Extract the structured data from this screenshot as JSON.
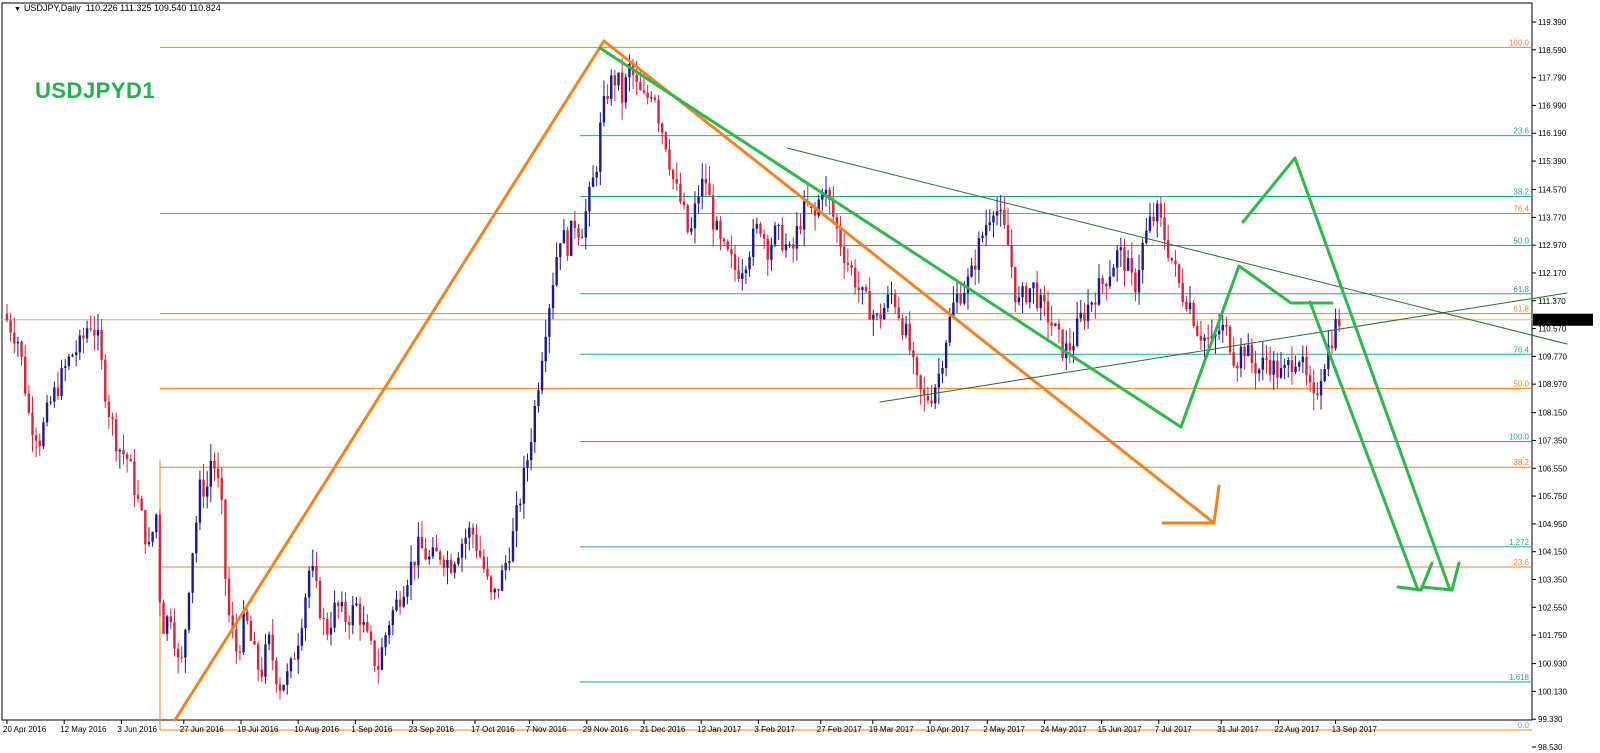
{
  "window": {
    "symbol": "USDJPY,Daily",
    "ohlc": "110.226 111.325 109.540 110.824",
    "big_title": "USDJPYD1"
  },
  "chart_data": {
    "type": "candlestick",
    "title": "USDJPY,Daily",
    "ylim": [
      98.53,
      119.65
    ],
    "y_ticks": [
      "119.390",
      "118.590",
      "117.790",
      "116.990",
      "116.190",
      "115.390",
      "114.570",
      "113.770",
      "112.970",
      "112.170",
      "111.370",
      "110.570",
      "109.770",
      "108.970",
      "108.150",
      "107.350",
      "106.550",
      "105.750",
      "104.950",
      "104.150",
      "103.350",
      "102.550",
      "101.750",
      "100.930",
      "100.130",
      "99.330",
      "98.530"
    ],
    "current_price": "110.824",
    "x_labels": [
      "20 Apr 2016",
      "12 May 2016",
      "3 Jun 2016",
      "27 Jun 2016",
      "19 Jul 2016",
      "10 Aug 2016",
      "1 Sep 2016",
      "23 Sep 2016",
      "17 Oct 2016",
      "7 Nov 2016",
      "29 Nov 2016",
      "21 Dec 2016",
      "12 Jan 2017",
      "3 Feb 2017",
      "27 Feb 2017",
      "19 Mar 2017",
      "10 Apr 2017",
      "2 May 2017",
      "24 May 2017",
      "15 Jun 2017",
      "7 Jul 2017",
      "31 Jul 2017",
      "22 Aug 2017",
      "13 Sep 2017"
    ],
    "colors": {
      "bull": "#1a1a8c",
      "bear": "#d4253b",
      "orange": "#f58220",
      "teal": "#1aaa9e",
      "green": "#2db84a",
      "darkgreen": "#2e6b2e"
    },
    "fib_orange": [
      {
        "label": "100.0",
        "price": 118.66
      },
      {
        "label": "76.4",
        "price": 113.88
      },
      {
        "label": "61.8",
        "price": 111.0
      },
      {
        "label": "50.0",
        "price": 108.85
      },
      {
        "label": "38.2",
        "price": 106.58
      },
      {
        "label": "23.6",
        "price": 103.71
      },
      {
        "label": "0.0",
        "price": 99.02
      }
    ],
    "fib_teal": [
      {
        "label": "23.6",
        "price": 116.12
      },
      {
        "label": "38.2",
        "price": 114.37
      },
      {
        "label": "50.0",
        "price": 112.96
      },
      {
        "label": "61.8",
        "price": 111.57
      },
      {
        "label": "76.4",
        "price": 109.83
      },
      {
        "label": "100.0",
        "price": 107.32
      },
      {
        "label": "1.272",
        "price": 104.29
      },
      {
        "label": "1.618",
        "price": 100.4
      }
    ],
    "anchors": [
      {
        "date": "20 Apr 2016",
        "day": 0
      },
      {
        "date": "12 May 2016",
        "day": 22
      },
      {
        "date": "3 Jun 2016",
        "day": 44
      },
      {
        "date": "27 Jun 2016",
        "day": 68
      },
      {
        "date": "19 Jul 2016",
        "day": 90
      },
      {
        "date": "10 Aug 2016",
        "day": 112
      },
      {
        "date": "1 Sep 2016",
        "day": 134
      },
      {
        "date": "23 Sep 2016",
        "day": 156
      },
      {
        "date": "17 Oct 2016",
        "day": 180
      },
      {
        "date": "7 Nov 2016",
        "day": 201
      },
      {
        "date": "29 Nov 2016",
        "day": 223
      },
      {
        "date": "21 Dec 2016",
        "day": 245
      },
      {
        "date": "12 Jan 2017",
        "day": 267
      },
      {
        "date": "3 Feb 2017",
        "day": 289
      },
      {
        "date": "27 Feb 2017",
        "day": 313
      },
      {
        "date": "19 Mar 2017",
        "day": 333
      },
      {
        "date": "10 Apr 2017",
        "day": 355
      },
      {
        "date": "2 May 2017",
        "day": 377
      },
      {
        "date": "24 May 2017",
        "day": 399
      },
      {
        "date": "15 Jun 2017",
        "day": 421
      },
      {
        "date": "7 Jul 2017",
        "day": 443
      },
      {
        "date": "31 Jul 2017",
        "day": 467
      },
      {
        "date": "22 Aug 2017",
        "day": 489
      },
      {
        "date": "13 Sep 2017",
        "day": 511
      }
    ],
    "price_path": [
      [
        0,
        111.0
      ],
      [
        6,
        110.2
      ],
      [
        10,
        108.0
      ],
      [
        14,
        107.4
      ],
      [
        18,
        108.4
      ],
      [
        22,
        109.1
      ],
      [
        26,
        109.8
      ],
      [
        30,
        110.1
      ],
      [
        33,
        110.8
      ],
      [
        36,
        110.4
      ],
      [
        40,
        108.4
      ],
      [
        44,
        107.2
      ],
      [
        48,
        106.8
      ],
      [
        52,
        105.5
      ],
      [
        56,
        104.2
      ],
      [
        59,
        105.3
      ],
      [
        60,
        103.0
      ],
      [
        62,
        101.8
      ],
      [
        64,
        102.6
      ],
      [
        66,
        101.6
      ],
      [
        68,
        100.5
      ],
      [
        70,
        102.0
      ],
      [
        72,
        103.8
      ],
      [
        74,
        104.9
      ],
      [
        76,
        106.2
      ],
      [
        78,
        105.8
      ],
      [
        80,
        106.9
      ],
      [
        82,
        106.4
      ],
      [
        84,
        105.3
      ],
      [
        86,
        102.6
      ],
      [
        88,
        101.8
      ],
      [
        90,
        101.2
      ],
      [
        93,
        102.3
      ],
      [
        96,
        101.3
      ],
      [
        99,
        100.6
      ],
      [
        102,
        101.6
      ],
      [
        106,
        100.3
      ],
      [
        110,
        100.6
      ],
      [
        114,
        101.9
      ],
      [
        118,
        103.8
      ],
      [
        121,
        102.8
      ],
      [
        124,
        101.8
      ],
      [
        128,
        102.6
      ],
      [
        132,
        102.2
      ],
      [
        136,
        102.6
      ],
      [
        140,
        101.6
      ],
      [
        144,
        100.8
      ],
      [
        148,
        102.1
      ],
      [
        152,
        102.8
      ],
      [
        156,
        103.6
      ],
      [
        160,
        104.3
      ],
      [
        164,
        103.9
      ],
      [
        168,
        104.1
      ],
      [
        172,
        103.8
      ],
      [
        176,
        104.4
      ],
      [
        180,
        104.8
      ],
      [
        184,
        103.9
      ],
      [
        188,
        102.7
      ],
      [
        192,
        103.5
      ],
      [
        196,
        104.6
      ],
      [
        199,
        105.8
      ],
      [
        202,
        107.0
      ],
      [
        205,
        108.6
      ],
      [
        208,
        110.4
      ],
      [
        211,
        111.8
      ],
      [
        214,
        113.3
      ],
      [
        217,
        113.0
      ],
      [
        220,
        113.7
      ],
      [
        222,
        113.3
      ],
      [
        225,
        114.2
      ],
      [
        228,
        115.2
      ],
      [
        230,
        116.6
      ],
      [
        233,
        117.6
      ],
      [
        236,
        117.8
      ],
      [
        238,
        117.2
      ],
      [
        241,
        118.1
      ],
      [
        244,
        117.4
      ],
      [
        247,
        117.1
      ],
      [
        250,
        117.6
      ],
      [
        252,
        116.7
      ],
      [
        255,
        115.9
      ],
      [
        258,
        114.7
      ],
      [
        261,
        114.1
      ],
      [
        264,
        113.1
      ],
      [
        267,
        114.4
      ],
      [
        270,
        114.9
      ],
      [
        273,
        113.7
      ],
      [
        276,
        112.9
      ],
      [
        279,
        112.6
      ],
      [
        282,
        112.2
      ],
      [
        285,
        112.5
      ],
      [
        288,
        113.1
      ],
      [
        291,
        113.6
      ],
      [
        294,
        112.9
      ],
      [
        297,
        113.3
      ],
      [
        300,
        113.1
      ],
      [
        303,
        112.6
      ],
      [
        306,
        113.6
      ],
      [
        309,
        114.1
      ],
      [
        312,
        113.7
      ],
      [
        315,
        114.7
      ],
      [
        318,
        114.1
      ],
      [
        321,
        113.3
      ],
      [
        324,
        112.6
      ],
      [
        327,
        112.1
      ],
      [
        330,
        111.5
      ],
      [
        333,
        111.2
      ],
      [
        336,
        110.8
      ],
      [
        339,
        111.2
      ],
      [
        342,
        111.6
      ],
      [
        345,
        110.9
      ],
      [
        348,
        110.2
      ],
      [
        351,
        109.0
      ],
      [
        354,
        108.5
      ],
      [
        357,
        108.7
      ],
      [
        360,
        109.3
      ],
      [
        363,
        110.5
      ],
      [
        366,
        111.4
      ],
      [
        369,
        111.7
      ],
      [
        372,
        112.0
      ],
      [
        375,
        112.9
      ],
      [
        378,
        113.6
      ],
      [
        381,
        114.2
      ],
      [
        384,
        113.6
      ],
      [
        387,
        112.8
      ],
      [
        390,
        111.2
      ],
      [
        393,
        111.6
      ],
      [
        396,
        111.8
      ],
      [
        399,
        111.2
      ],
      [
        402,
        110.9
      ],
      [
        405,
        110.4
      ],
      [
        408,
        109.9
      ],
      [
        411,
        110.1
      ],
      [
        414,
        110.8
      ],
      [
        417,
        111.2
      ],
      [
        420,
        111.6
      ],
      [
        423,
        111.9
      ],
      [
        426,
        112.3
      ],
      [
        429,
        112.8
      ],
      [
        432,
        112.4
      ],
      [
        435,
        111.7
      ],
      [
        438,
        112.9
      ],
      [
        441,
        113.6
      ],
      [
        444,
        113.9
      ],
      [
        447,
        113.1
      ],
      [
        450,
        112.4
      ],
      [
        453,
        111.6
      ],
      [
        456,
        111.4
      ],
      [
        459,
        110.6
      ],
      [
        462,
        110.3
      ],
      [
        465,
        110.1
      ],
      [
        468,
        110.6
      ],
      [
        471,
        110.4
      ],
      [
        474,
        109.6
      ],
      [
        477,
        110.1
      ],
      [
        480,
        109.6
      ],
      [
        483,
        109.4
      ],
      [
        486,
        109.7
      ],
      [
        489,
        109.4
      ],
      [
        492,
        109.2
      ],
      [
        495,
        109.6
      ],
      [
        498,
        109.9
      ],
      [
        501,
        109.1
      ],
      [
        504,
        108.4
      ],
      [
        507,
        109.4
      ],
      [
        510,
        110.1
      ],
      [
        513,
        110.8
      ]
    ]
  }
}
